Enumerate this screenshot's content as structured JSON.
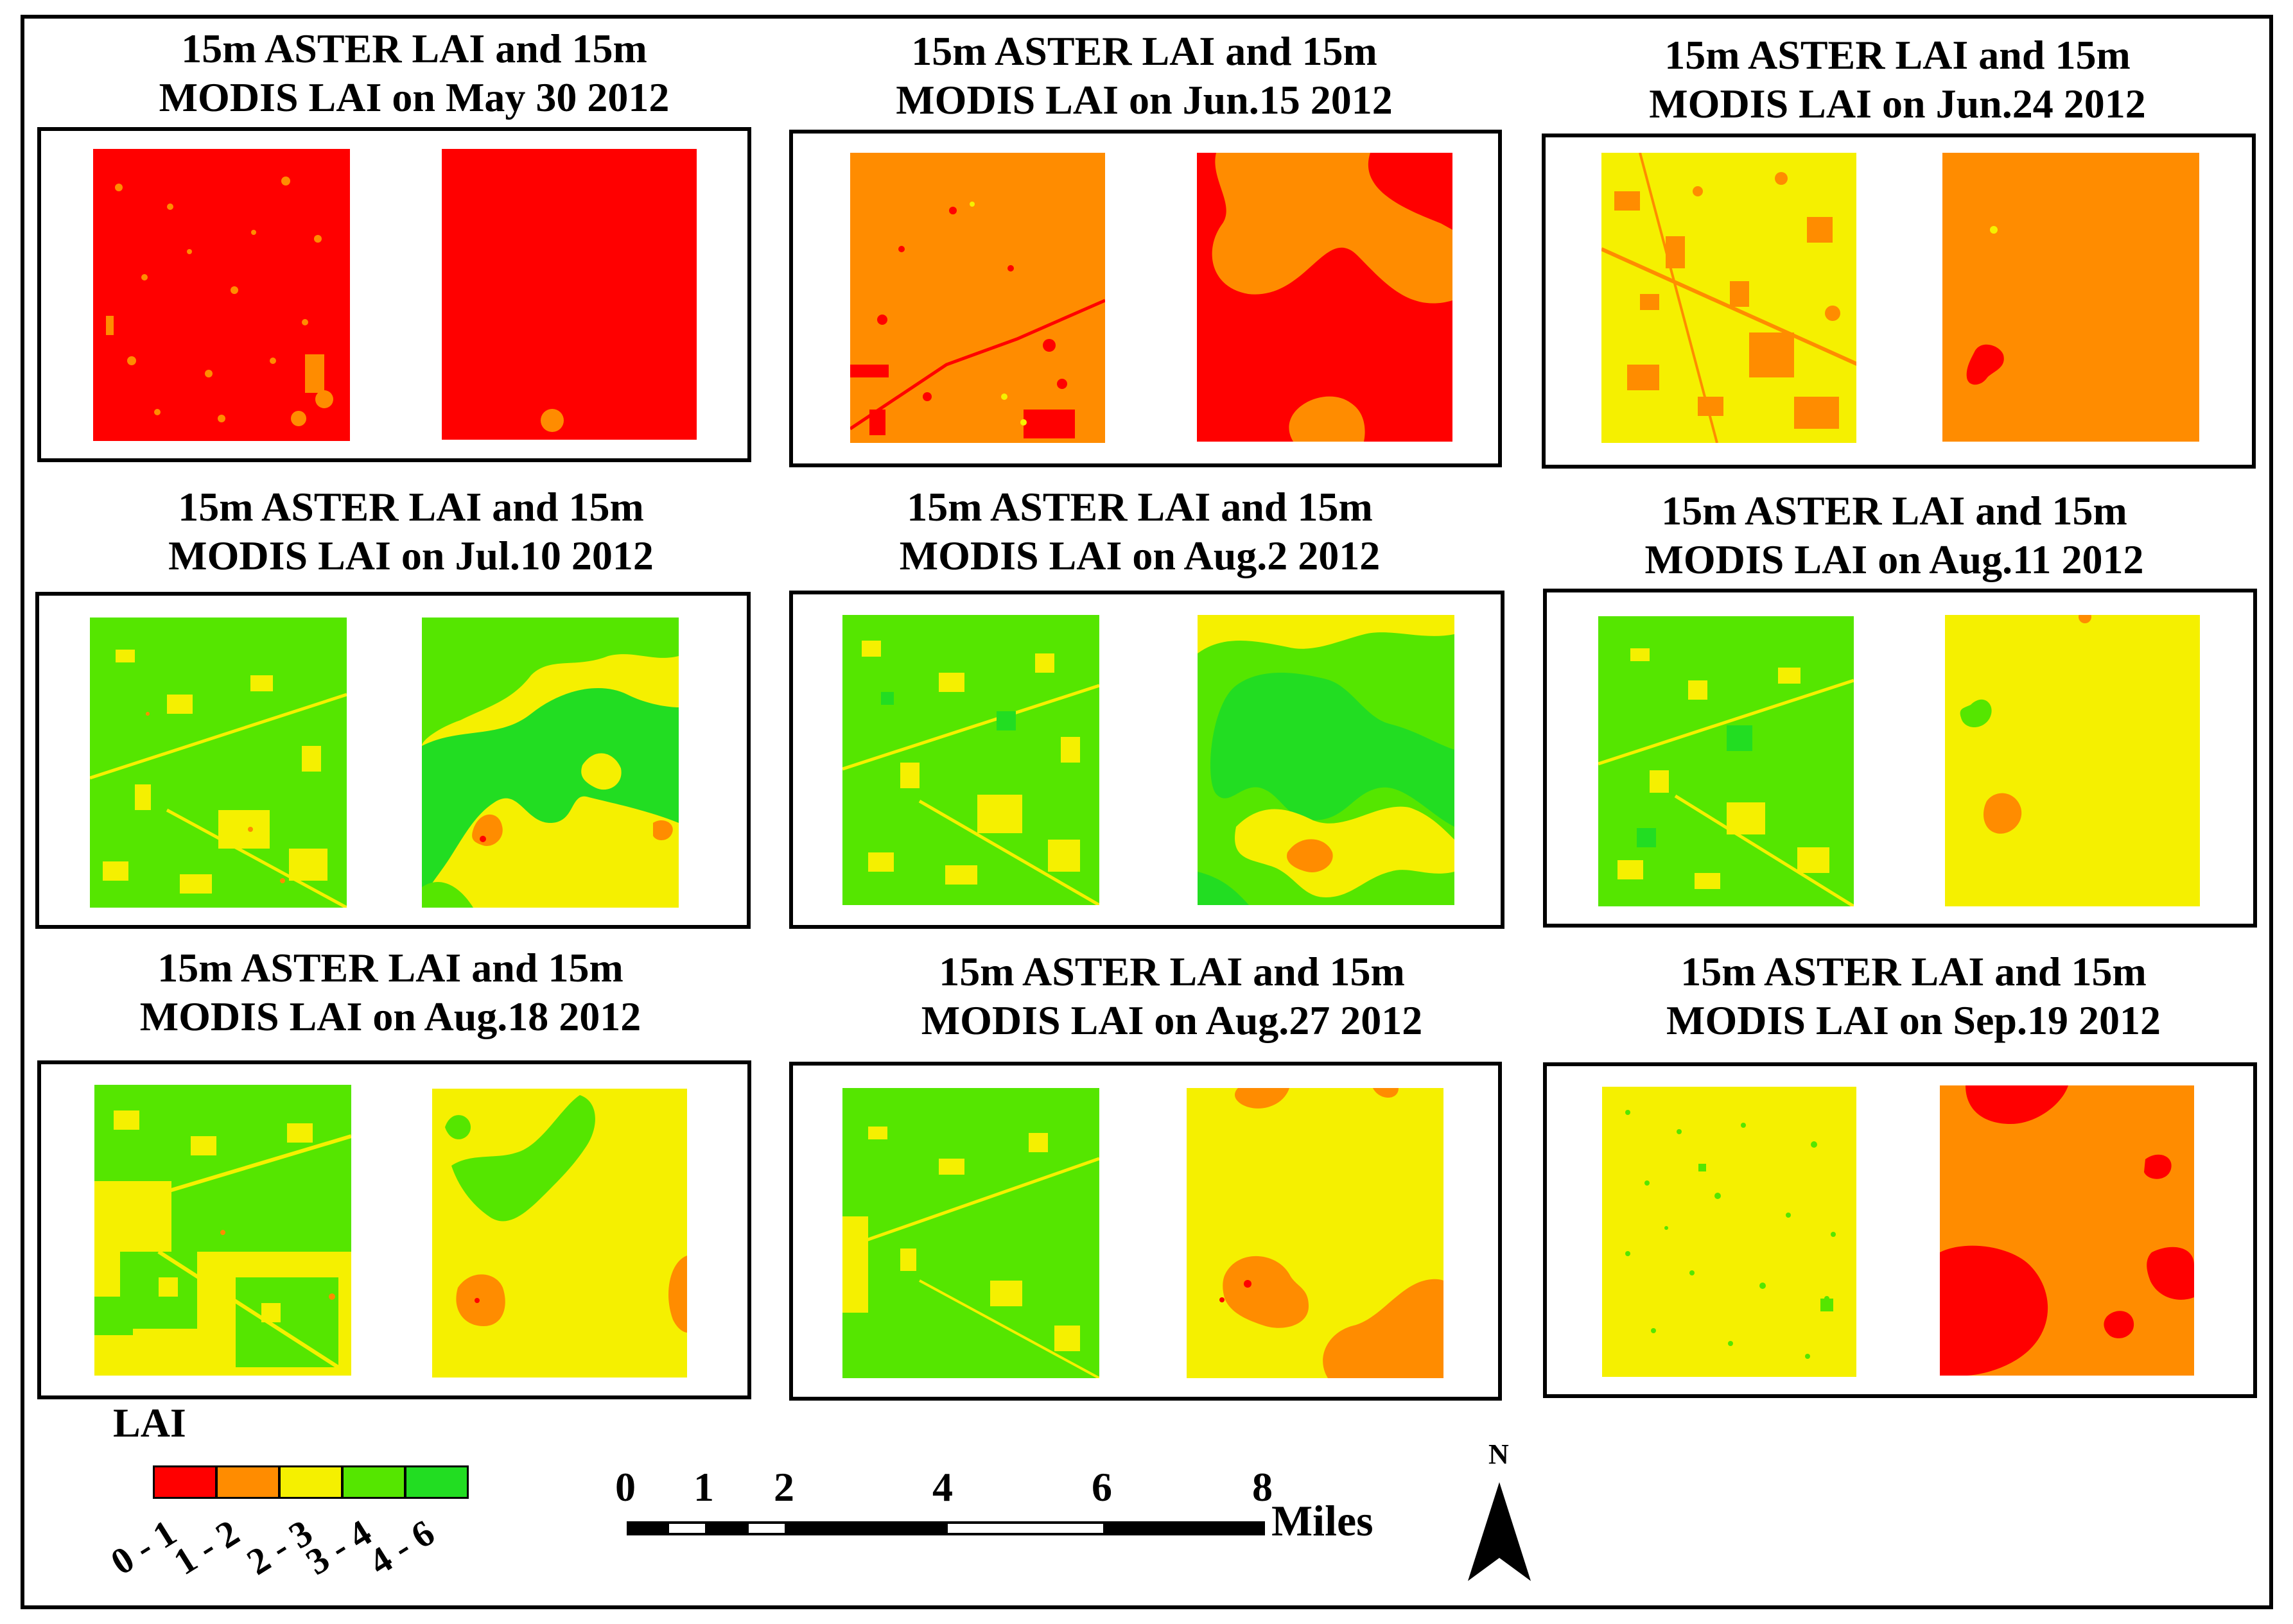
{
  "panels": [
    {
      "title_line1": "15m ASTER LAI and 15m",
      "title_line2": "MODIS LAI on May 30 2012"
    },
    {
      "title_line1": "15m ASTER LAI and 15m",
      "title_line2": "MODIS LAI on Jun.15 2012"
    },
    {
      "title_line1": "15m ASTER LAI and 15m",
      "title_line2": "MODIS LAI on Jun.24 2012"
    },
    {
      "title_line1": "15m ASTER LAI and 15m",
      "title_line2": "MODIS LAI on Jul.10 2012"
    },
    {
      "title_line1": "15m ASTER LAI and 15m",
      "title_line2": "MODIS LAI on Aug.2 2012"
    },
    {
      "title_line1": "15m ASTER LAI and 15m",
      "title_line2": "MODIS LAI on Aug.11 2012"
    },
    {
      "title_line1": "15m ASTER LAI and 15m",
      "title_line2": "MODIS LAI on Aug.18 2012"
    },
    {
      "title_line1": "15m ASTER LAI and 15m",
      "title_line2": "MODIS LAI on Aug.27 2012"
    },
    {
      "title_line1": "15m ASTER LAI and 15m",
      "title_line2": "MODIS LAI on Sep.19 2012"
    }
  ],
  "legend": {
    "title": "LAI",
    "classes": [
      {
        "label": "0 - 1",
        "color": "#ff0000"
      },
      {
        "label": "1 - 2",
        "color": "#ff8c00"
      },
      {
        "label": "2 - 3",
        "color": "#f5f000"
      },
      {
        "label": "3 - 4",
        "color": "#55e600"
      },
      {
        "label": "4 - 6",
        "color": "#22dd22"
      }
    ]
  },
  "scale_bar": {
    "labels": [
      "0",
      "1",
      "2",
      "4",
      "6",
      "8"
    ],
    "unit": "Miles"
  },
  "north_arrow": {
    "label": "N"
  }
}
